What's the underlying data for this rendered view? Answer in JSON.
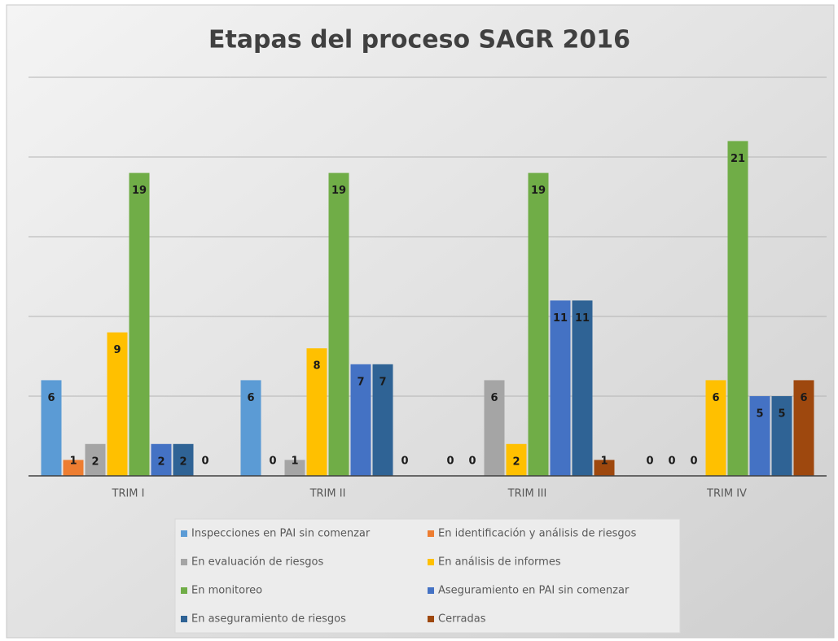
{
  "chart_data": {
    "type": "bar",
    "title": "Etapas del proceso SAGR 2016",
    "categories": [
      "TRIM I",
      "TRIM II",
      "TRIM III",
      "TRIM IV"
    ],
    "series": [
      {
        "name": "Inspecciones en PAI sin comenzar",
        "color": "#5b9bd5",
        "values": [
          6,
          6,
          0,
          0
        ]
      },
      {
        "name": "En identificación y análisis de riesgos",
        "color": "#ed7d31",
        "values": [
          1,
          0,
          0,
          0
        ]
      },
      {
        "name": "En evaluación de riesgos",
        "color": "#a5a5a5",
        "values": [
          2,
          1,
          6,
          0
        ]
      },
      {
        "name": "En análisis de informes",
        "color": "#ffc000",
        "values": [
          9,
          8,
          2,
          6
        ]
      },
      {
        "name": "En monitoreo",
        "color": "#70ad47",
        "values": [
          19,
          19,
          19,
          21
        ]
      },
      {
        "name": "Aseguramiento en PAI sin comenzar",
        "color": "#4472c4",
        "values": [
          2,
          7,
          11,
          5
        ]
      },
      {
        "name": "En aseguramiento de riesgos",
        "color": "#2f6395",
        "values": [
          2,
          7,
          11,
          5
        ]
      },
      {
        "name": "Cerradas",
        "color": "#9e480e",
        "values": [
          0,
          0,
          1,
          6
        ]
      }
    ],
    "ylim": [
      0,
      25
    ],
    "yticks": [
      0,
      5,
      10,
      15,
      20,
      25
    ],
    "grid": true
  }
}
